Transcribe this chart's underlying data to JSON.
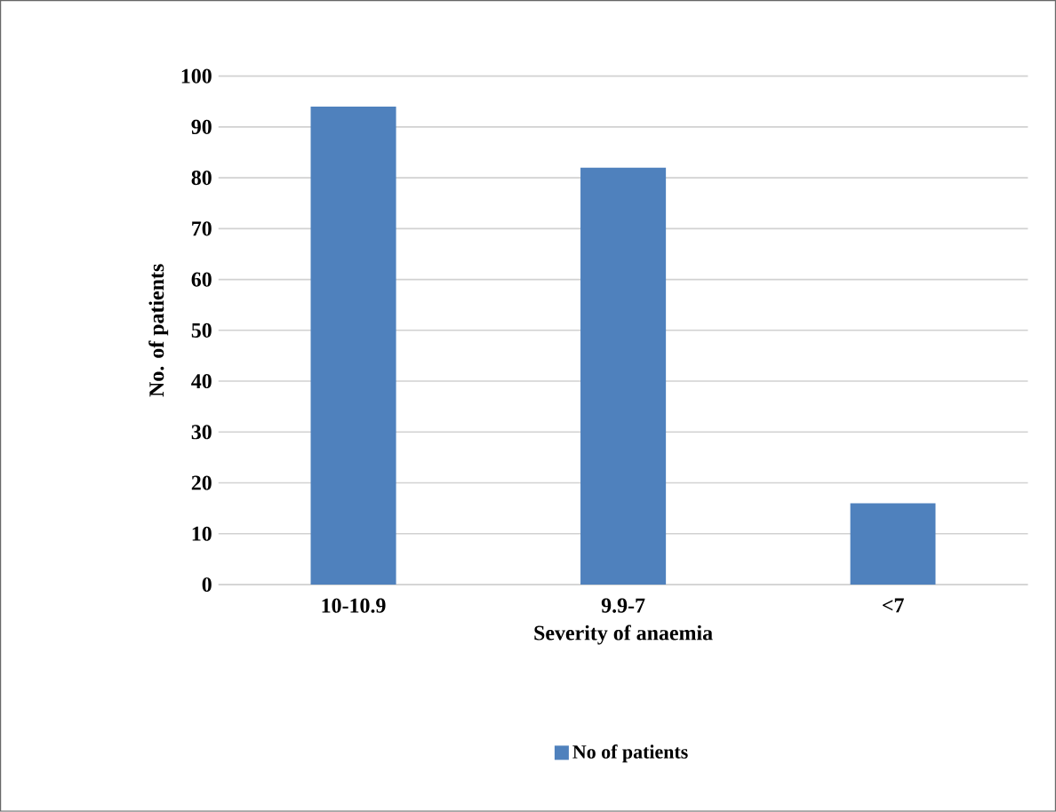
{
  "chart_data": {
    "type": "bar",
    "xlabel": "Severity of anaemia",
    "ylabel": "No. of patients",
    "categories": [
      "10-10.9",
      "9.9-7",
      "<7"
    ],
    "series": [
      {
        "name": "No of patients",
        "color": "#4f81bd",
        "values": [
          94,
          82,
          16
        ]
      }
    ],
    "ylim": [
      0,
      100
    ],
    "yticks": [
      0,
      10,
      20,
      30,
      40,
      50,
      60,
      70,
      80,
      90,
      100
    ],
    "grid": "y",
    "legend": "bottom"
  }
}
